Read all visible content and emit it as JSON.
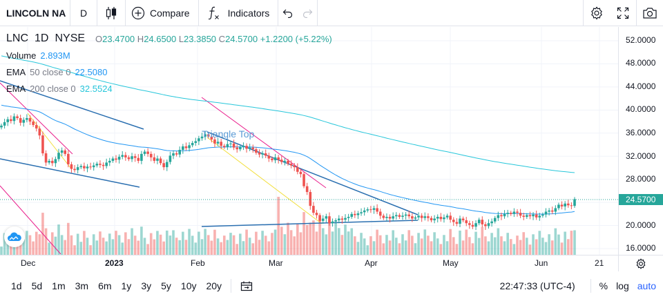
{
  "toolbar": {
    "symbol": "LINCOLN NA",
    "interval": "D",
    "chart_type_icon": "candles-icon",
    "compare_label": "Compare",
    "indicators_label": "Indicators",
    "right_icons": [
      "gear-icon",
      "fullscreen-icon",
      "camera-icon"
    ]
  },
  "legend": {
    "ticker": "LNC",
    "interval": "1D",
    "exchange": "NYSE",
    "o_label": "O",
    "o": "23.4700",
    "h_label": "H",
    "h": "24.6500",
    "l_label": "L",
    "l": "23.3850",
    "c_label": "C",
    "c": "24.5700",
    "change": "+1.2200 (+5.22%)",
    "volume_label": "Volume",
    "volume": "2.893M",
    "ema50_label": "EMA",
    "ema50_params": "50 close 0",
    "ema50_value": "22.5080",
    "ema200_label": "EMA",
    "ema200_params": "200 close 0",
    "ema200_value": "32.5524"
  },
  "annotations": {
    "pattern": "Triangle Top"
  },
  "price_axis": [
    "52.0000",
    "48.0000",
    "44.0000",
    "40.0000",
    "36.0000",
    "32.0000",
    "28.0000",
    "24.0000",
    "20.0000",
    "16.0000"
  ],
  "last_price": "24.5700",
  "time_axis": [
    "Dec",
    "2023",
    "Feb",
    "Mar",
    "Apr",
    "May",
    "Jun",
    "21"
  ],
  "bottom": {
    "ranges": [
      "1d",
      "5d",
      "1m",
      "3m",
      "6m",
      "1y",
      "3y",
      "5y",
      "10y",
      "20y"
    ],
    "clock": "22:47:33 (UTC-4)",
    "percent": "%",
    "log": "log",
    "auto": "auto"
  },
  "colors": {
    "up": "#26a69a",
    "down": "#ef5350",
    "ema50": "#2196f3",
    "ema200": "#26c6da",
    "accent": "#2962ff"
  },
  "chart_data": {
    "type": "candlestick",
    "symbol": "LNC",
    "ylim": [
      15,
      54
    ],
    "log_scale": false,
    "closes": [
      37.3,
      37.9,
      38.4,
      38.1,
      38.9,
      38.6,
      37.8,
      38.3,
      38.6,
      38.0,
      37.4,
      36.8,
      35.6,
      32.5,
      30.9,
      31.2,
      30.8,
      31.5,
      32.6,
      33.0,
      32.4,
      30.6,
      29.8,
      29.6,
      30.1,
      30.3,
      29.9,
      30.2,
      30.1,
      30.4,
      30.7,
      30.5,
      30.3,
      30.9,
      31.2,
      31.6,
      31.4,
      31.9,
      32.2,
      31.8,
      31.5,
      32.0,
      31.7,
      31.2,
      32.4,
      32.8,
      32.4,
      31.8,
      31.2,
      31.6,
      30.8,
      30.1,
      31.0,
      32.1,
      32.5,
      32.3,
      33.1,
      33.7,
      33.4,
      33.9,
      34.3,
      34.6,
      35.1,
      35.4,
      35.8,
      35.4,
      34.9,
      34.2,
      34.5,
      33.8,
      33.6,
      34.1,
      34.2,
      33.5,
      33.2,
      33.6,
      33.8,
      33.3,
      33.5,
      33.2,
      32.6,
      32.3,
      32.5,
      32.1,
      31.6,
      31.3,
      31.8,
      31.4,
      31.0,
      31.2,
      30.7,
      30.4,
      30.1,
      29.3,
      28.9,
      26.8,
      25.8,
      23.4,
      22.2,
      21.8,
      20.8,
      21.2,
      21.6,
      20.4,
      20.7,
      20.9,
      21.2,
      21.0,
      21.3,
      21.5,
      22.0,
      21.8,
      22.1,
      22.3,
      22.6,
      22.8,
      22.7,
      23.0,
      22.4,
      21.7,
      21.3,
      21.5,
      21.2,
      21.6,
      21.8,
      21.5,
      21.7,
      21.9,
      21.6,
      21.2,
      21.4,
      21.7,
      21.3,
      21.6,
      21.3,
      20.9,
      21.2,
      21.5,
      21.1,
      21.4,
      21.7,
      21.0,
      20.6,
      20.3,
      21.2,
      20.9,
      20.4,
      20.1,
      19.8,
      20.4,
      21.0,
      20.2,
      19.9,
      20.4,
      20.7,
      21.3,
      21.8,
      21.6,
      22.0,
      22.2,
      22.0,
      22.4,
      22.2,
      21.7,
      21.5,
      21.8,
      21.6,
      21.9,
      21.4,
      21.7,
      21.9,
      22.4,
      22.6,
      22.4,
      23.0,
      23.6,
      23.3,
      23.8,
      23.5,
      23.4,
      24.57
    ],
    "ema50_endpoints": [
      {
        "date": "2022-11-01",
        "value": 41.0
      },
      {
        "date": "2023-06-16",
        "value": 22.508
      }
    ],
    "ema200_endpoints": [
      {
        "date": "2022-11-01",
        "value": 49.5
      },
      {
        "date": "2023-06-16",
        "value": 32.5524
      }
    ],
    "volume_last": "2.893M",
    "last_candle": {
      "o": 23.47,
      "h": 24.65,
      "l": 23.385,
      "c": 24.57
    }
  }
}
